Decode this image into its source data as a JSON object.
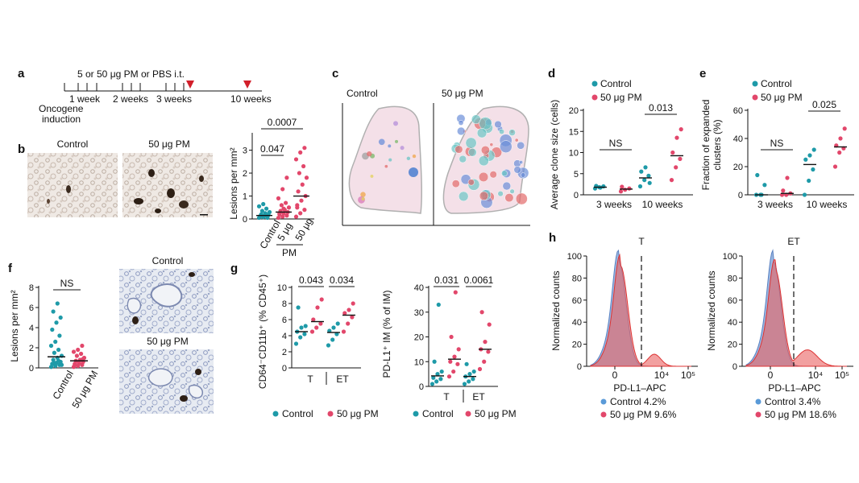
{
  "colors": {
    "control": "#1e9aa8",
    "pm": "#e2476b",
    "red_marker": "#d21f2a",
    "hist_control": "#7aa0d8",
    "hist_pm": "#e96060"
  },
  "panels": {
    "a": "a",
    "b": "b",
    "c": "c",
    "d": "d",
    "e": "e",
    "f": "f",
    "g": "g",
    "h": "h"
  },
  "a": {
    "header": "5 or 50 μg PM or PBS i.t.",
    "t1": "1 week",
    "t2": "2 weeks",
    "t3": "3 weeks",
    "t4": "10 weeks",
    "start1": "Oncogene",
    "start2": "induction"
  },
  "b": {
    "img_control": "Control",
    "img_pm": "50 μg PM",
    "ylabel": "Lesions per mm²",
    "cats": [
      "Control",
      "5 μg",
      "50 μg"
    ],
    "group": "PM",
    "p1": "0.047",
    "p2": "0.0007",
    "yticks": [
      "0",
      "1",
      "2",
      "3"
    ]
  },
  "c": {
    "left": "Control",
    "right": "50 μg PM"
  },
  "d": {
    "legend_control": "Control",
    "legend_pm": "50 μg PM",
    "ylabel": "Average clone size (cells)",
    "cats": [
      "3 weeks",
      "10 weeks"
    ],
    "p1": "NS",
    "p2": "0.013",
    "yticks": [
      "0",
      "5",
      "10",
      "15",
      "20"
    ]
  },
  "e": {
    "legend_control": "Control",
    "legend_pm": "50 μg PM",
    "ylabel1": "Fraction of expanded",
    "ylabel2": "clusters (%)",
    "cats": [
      "3 weeks",
      "10 weeks"
    ],
    "p1": "NS",
    "p2": "0.025",
    "yticks": [
      "0",
      "20",
      "40",
      "60"
    ]
  },
  "f": {
    "ylabel": "Lesions per mm²",
    "cats": [
      "Control",
      "50 μg PM"
    ],
    "p": "NS",
    "yticks": [
      "0",
      "2",
      "4",
      "6",
      "8"
    ],
    "img_control": "Control",
    "img_pm": "50 μg PM"
  },
  "g": {
    "ylabel1": "CD64⁻CD11b⁺ (% CD45⁺)",
    "ylabel2": "PD-L1⁺ IM (% of IM)",
    "cats": [
      "T",
      "ET"
    ],
    "p1": "0.043",
    "p2": "0.034",
    "p3": "0.031",
    "p4": "0.0061",
    "yticks1": [
      "0",
      "2",
      "4",
      "6",
      "8",
      "10"
    ],
    "yticks2": [
      "0",
      "10",
      "20",
      "30",
      "40"
    ],
    "legend_control": "Control",
    "legend_pm": "50 μg PM"
  },
  "h": {
    "ylabel": "Normalized counts",
    "xlabel": "PD-L1–APC",
    "yticks": [
      "0",
      "20",
      "40",
      "60",
      "80",
      "100"
    ],
    "xticks": [
      "0",
      "10⁴",
      "10⁵"
    ],
    "label_left": "T",
    "label_right": "ET",
    "left_control": "Control 4.2%",
    "left_pm": "50 μg PM 9.6%",
    "right_control": "Control 3.4%",
    "right_pm": "50 μg PM 18.6%"
  },
  "chart_data": [
    {
      "type": "scatter",
      "title": "b",
      "ylabel": "Lesions per mm²",
      "categories": [
        "Control",
        "5 μg",
        "50 μg"
      ],
      "ylim": [
        0,
        3.3
      ],
      "series": [
        {
          "name": "Control",
          "values": [
            0.05,
            0.08,
            0.1,
            0.12,
            0.15,
            0.18,
            0.2,
            0.25,
            0.3,
            0.35,
            0.45,
            0.55,
            0.65,
            0.05,
            0.12
          ]
        },
        {
          "name": "5 μg",
          "values": [
            0.05,
            0.1,
            0.15,
            0.2,
            0.25,
            0.3,
            0.35,
            0.4,
            0.5,
            0.6,
            0.7,
            0.9,
            1.3,
            1.8,
            0.25,
            0.45
          ]
        },
        {
          "name": "50 μg",
          "values": [
            0.1,
            0.25,
            0.4,
            0.6,
            0.8,
            1.0,
            1.2,
            1.5,
            1.8,
            2.0,
            2.3,
            2.6,
            2.9,
            3.1,
            0.5
          ]
        }
      ],
      "medians": [
        0.15,
        0.3,
        1.0
      ]
    },
    {
      "type": "scatter",
      "title": "d",
      "ylabel": "Average clone size (cells)",
      "categories": [
        "3 weeks",
        "10 weeks"
      ],
      "ylim": [
        0,
        20
      ],
      "series": [
        {
          "name": "Control",
          "values": [
            [
              1.5,
              1.8,
              2.0,
              2.1,
              1.7
            ],
            [
              2.0,
              3.5,
              4.5,
              5.5,
              6.5,
              2.8
            ]
          ]
        },
        {
          "name": "50 μg PM",
          "values": [
            [
              0.8,
              1.2,
              1.5,
              1.9
            ],
            [
              3.5,
              6.5,
              8.5,
              10.0,
              13.5,
              15.5
            ]
          ]
        }
      ]
    },
    {
      "type": "scatter",
      "title": "e",
      "ylabel": "Fraction of expanded clusters (%)",
      "categories": [
        "3 weeks",
        "10 weeks"
      ],
      "ylim": [
        0,
        60
      ],
      "series": [
        {
          "name": "Control",
          "values": [
            [
              0,
              0,
              7,
              14,
              0
            ],
            [
              0,
              10,
              18,
              25,
              28,
              32
            ]
          ]
        },
        {
          "name": "50 μg PM",
          "values": [
            [
              0,
              0,
              1,
              3,
              12
            ],
            [
              20,
              30,
              33,
              35,
              40,
              47
            ]
          ]
        }
      ]
    },
    {
      "type": "scatter",
      "title": "f",
      "ylabel": "Lesions per mm²",
      "categories": [
        "Control",
        "50 μg PM"
      ],
      "ylim": [
        0,
        8
      ],
      "series": [
        {
          "name": "Control",
          "values": [
            0.1,
            0.2,
            0.3,
            0.4,
            0.5,
            0.6,
            0.8,
            1.0,
            1.2,
            1.5,
            1.8,
            2.2,
            2.6,
            3.2,
            3.8,
            4.5,
            5.0,
            5.6,
            6.4,
            0.3,
            0.5,
            0.7
          ]
        },
        {
          "name": "50 μg PM",
          "values": [
            0.1,
            0.2,
            0.3,
            0.4,
            0.5,
            0.6,
            0.7,
            0.8,
            1.0,
            1.2,
            1.4,
            1.6,
            1.8,
            2.2,
            0.3,
            0.5,
            0.9
          ]
        }
      ]
    },
    {
      "type": "scatter",
      "title": "g-left",
      "ylabel": "CD64⁻CD11b⁺ (% CD45⁺)",
      "categories": [
        "T",
        "ET"
      ],
      "ylim": [
        0,
        10
      ],
      "series": [
        {
          "name": "Control",
          "values": [
            [
              3.0,
              3.8,
              4.2,
              4.5,
              5.0,
              5.2,
              7.5
            ],
            [
              2.8,
              3.5,
              4.2,
              4.6,
              5.0,
              5.5
            ]
          ]
        },
        {
          "name": "50 μg PM",
          "values": [
            [
              4.5,
              5.0,
              5.5,
              6.0,
              7.5,
              8.5
            ],
            [
              4.5,
              5.5,
              6.3,
              6.8,
              7.2,
              8.0
            ]
          ]
        }
      ]
    },
    {
      "type": "scatter",
      "title": "g-right",
      "ylabel": "PD-L1⁺ IM (% of IM)",
      "categories": [
        "T",
        "ET"
      ],
      "ylim": [
        0,
        40
      ],
      "series": [
        {
          "name": "Control",
          "values": [
            [
              1,
              2,
              3,
              3.5,
              5,
              6,
              10,
              33
            ],
            [
              1,
              2,
              3,
              4,
              5,
              6,
              9
            ]
          ]
        },
        {
          "name": "50 μg PM",
          "values": [
            [
              4,
              6,
              9,
              10,
              12,
              15,
              20,
              38
            ],
            [
              7,
              10,
              14,
              15,
              18,
              25,
              30
            ]
          ]
        }
      ]
    },
    {
      "type": "area",
      "title": "h-left",
      "ylabel": "Normalized counts",
      "xlabel": "PD-L1–APC",
      "ylim": [
        0,
        100
      ],
      "gate": "T",
      "series": [
        {
          "name": "Control",
          "percent_positive": 4.2
        },
        {
          "name": "50 μg PM",
          "percent_positive": 9.6
        }
      ]
    },
    {
      "type": "area",
      "title": "h-right",
      "ylabel": "Normalized counts",
      "xlabel": "PD-L1–APC",
      "ylim": [
        0,
        100
      ],
      "gate": "ET",
      "series": [
        {
          "name": "Control",
          "percent_positive": 3.4
        },
        {
          "name": "50 μg PM",
          "percent_positive": 18.6
        }
      ]
    }
  ]
}
